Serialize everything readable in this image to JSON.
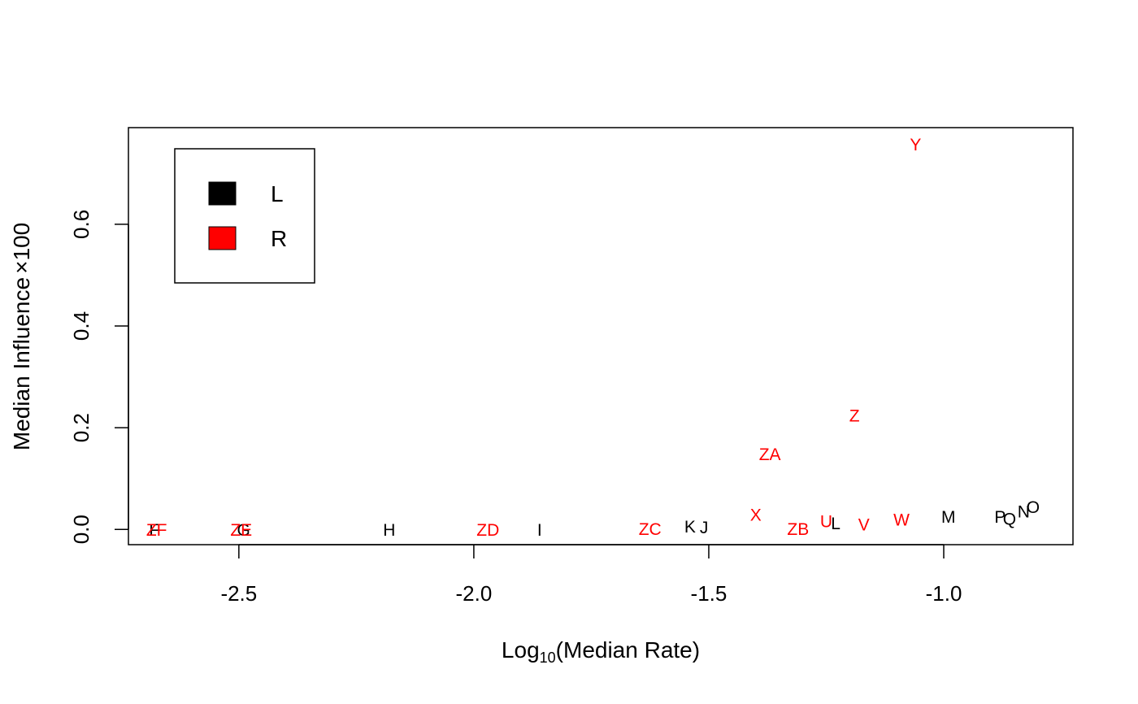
{
  "chart_data": {
    "type": "scatter",
    "xlabel": {
      "base": "Log",
      "sub": "10",
      "rest": "(Median Rate)"
    },
    "ylabel": {
      "text": "Median Influence",
      "times": "×",
      "num": "100"
    },
    "xlim": [
      -2.735,
      -0.725
    ],
    "ylim": [
      -0.03,
      0.79
    ],
    "xticks": [
      "-2.5",
      "-2.0",
      "-1.5",
      "-1.0"
    ],
    "xtick_values": [
      -2.5,
      -2.0,
      -1.5,
      -1.0
    ],
    "yticks": [
      "0.0",
      "0.2",
      "0.4",
      "0.6"
    ],
    "ytick_values": [
      0.0,
      0.2,
      0.4,
      0.6
    ],
    "legend": {
      "placement": "top-left",
      "entries": [
        {
          "label": "L",
          "color": "#000000"
        },
        {
          "label": "R",
          "color": "#ff0000"
        }
      ]
    },
    "series": [
      {
        "name": "L",
        "color": "#000000",
        "points": [
          {
            "label": "F",
            "x": -2.68,
            "y": 0.0
          },
          {
            "label": "G",
            "x": -2.49,
            "y": 0.0
          },
          {
            "label": "H",
            "x": -2.18,
            "y": 0.0
          },
          {
            "label": "I",
            "x": -1.86,
            "y": 0.0
          },
          {
            "label": "K",
            "x": -1.54,
            "y": 0.007
          },
          {
            "label": "J",
            "x": -1.51,
            "y": 0.005
          },
          {
            "label": "L",
            "x": -1.23,
            "y": 0.013
          },
          {
            "label": "M",
            "x": -0.99,
            "y": 0.026
          },
          {
            "label": "P",
            "x": -0.88,
            "y": 0.026
          },
          {
            "label": "Q",
            "x": -0.86,
            "y": 0.022
          },
          {
            "label": "N",
            "x": -0.83,
            "y": 0.036
          },
          {
            "label": "O",
            "x": -0.81,
            "y": 0.045
          }
        ]
      },
      {
        "name": "R",
        "color": "#ff0000",
        "points": [
          {
            "label": "ZF",
            "x": -2.675,
            "y": 0.0
          },
          {
            "label": "ZE",
            "x": -2.495,
            "y": 0.0
          },
          {
            "label": "ZD",
            "x": -1.97,
            "y": 0.0
          },
          {
            "label": "ZC",
            "x": -1.625,
            "y": 0.002
          },
          {
            "label": "X",
            "x": -1.4,
            "y": 0.03
          },
          {
            "label": "ZB",
            "x": -1.31,
            "y": 0.002
          },
          {
            "label": "U",
            "x": -1.25,
            "y": 0.017
          },
          {
            "label": "V",
            "x": -1.17,
            "y": 0.011
          },
          {
            "label": "W",
            "x": -1.09,
            "y": 0.02
          },
          {
            "label": "ZA",
            "x": -1.37,
            "y": 0.149
          },
          {
            "label": "Z",
            "x": -1.19,
            "y": 0.225
          },
          {
            "label": "Y",
            "x": -1.06,
            "y": 0.758
          }
        ]
      }
    ]
  }
}
